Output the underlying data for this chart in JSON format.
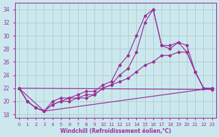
{
  "title": "",
  "xlabel": "Windchill (Refroidissement éolien,°C)",
  "ylabel": "",
  "bg_color": "#cce8ee",
  "grid_color": "#aacccc",
  "line_color": "#993399",
  "xlim": [
    -0.5,
    23.5
  ],
  "ylim": [
    17.5,
    35.0
  ],
  "xticks": [
    0,
    1,
    2,
    3,
    4,
    5,
    6,
    7,
    8,
    9,
    10,
    11,
    12,
    13,
    14,
    15,
    16,
    17,
    18,
    19,
    20,
    21,
    22,
    23
  ],
  "yticks": [
    18,
    20,
    22,
    24,
    26,
    28,
    30,
    32,
    34
  ],
  "curve1_x": [
    0,
    1,
    2,
    3,
    4,
    5,
    6,
    7,
    8,
    9,
    10,
    11,
    12,
    13,
    14,
    15,
    16,
    17,
    18,
    19,
    20,
    21,
    22,
    23
  ],
  "curve1_y": [
    22,
    20,
    19,
    18.5,
    20,
    20.5,
    20.5,
    21,
    21.5,
    21.5,
    22.5,
    23,
    25.5,
    27,
    30,
    33,
    34,
    28.5,
    28,
    29,
    27.5,
    24.5,
    22,
    22
  ],
  "curve2_x": [
    0,
    1,
    2,
    3,
    4,
    5,
    6,
    7,
    8,
    9,
    10,
    11,
    12,
    13,
    14,
    15,
    16,
    17,
    18,
    19,
    20,
    21,
    22,
    23
  ],
  "curve2_y": [
    22,
    20,
    19,
    18.5,
    19.5,
    20,
    20.5,
    20.5,
    21,
    21,
    22,
    22.5,
    24,
    25,
    27.5,
    32,
    34,
    28.5,
    28.5,
    29,
    28.5,
    24.5,
    22,
    22
  ],
  "curve3_x": [
    0,
    3,
    4,
    5,
    6,
    7,
    8,
    9,
    10,
    11,
    12,
    13,
    14,
    15,
    16,
    17,
    18,
    19,
    20,
    21,
    22,
    23
  ],
  "curve3_y": [
    22,
    18.5,
    19.5,
    20,
    20,
    20.5,
    20.5,
    21,
    22,
    22.5,
    23,
    23.5,
    24.5,
    25.5,
    26,
    27,
    27,
    27.5,
    27.5,
    24.5,
    22,
    22
  ],
  "curve4_x": [
    0,
    1,
    2,
    3,
    23
  ],
  "curve4_y": [
    22,
    20,
    19,
    18.5,
    22
  ],
  "curve5_x": [
    0,
    23
  ],
  "curve5_y": [
    22,
    21.8
  ]
}
